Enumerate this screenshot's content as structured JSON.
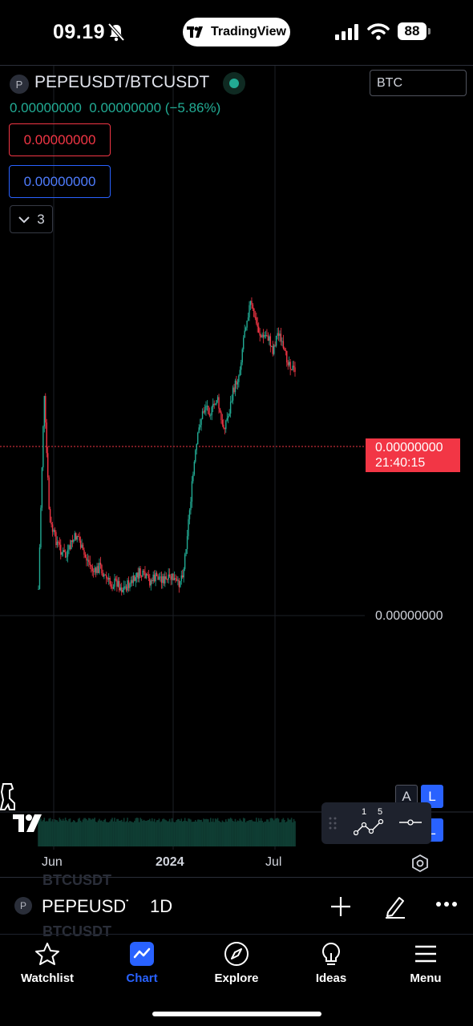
{
  "status_bar": {
    "time": "09.19",
    "app_pill": "TradingView",
    "battery": "88"
  },
  "header": {
    "symbol_icon_letter": "P",
    "symbol": "PEPEUSDT/BTCUSDT",
    "currency": "BTC",
    "quote_line": "0.00000000  0.00000000 (−5.86%)",
    "sell_price": "0.00000000",
    "buy_price": "0.00000000",
    "indicators_count": "3"
  },
  "chart": {
    "last_price": "0.00000000",
    "countdown": "21:40:15",
    "axis_price": "0.00000000",
    "x_labels": [
      "Jun",
      "2024",
      "Jul"
    ],
    "scale_buttons": {
      "auto": "A",
      "log": "L"
    },
    "toolbar_numbers": [
      "1",
      "5"
    ],
    "colors": {
      "up": "#22ab94",
      "down": "#f23645",
      "accent": "#2962ff"
    }
  },
  "chart_data": {
    "type": "candlestick",
    "xlabel": "",
    "ylabel": "",
    "x_ticks": [
      "Jun",
      "2024",
      "Jul"
    ],
    "trend_normalized_0_to_1_down_is_higher": [
      0.55,
      0.05,
      0.38,
      0.42,
      0.45,
      0.47,
      0.43,
      0.41,
      0.46,
      0.48,
      0.51,
      0.49,
      0.52,
      0.54,
      0.53,
      0.55,
      0.54,
      0.53,
      0.51,
      0.52,
      0.53,
      0.52,
      0.52,
      0.53,
      0.52,
      0.54,
      0.5,
      0.36,
      0.22,
      0.12,
      0.08,
      0.1,
      0.06,
      0.14,
      0.11,
      0.04,
      0.0,
      -0.12,
      -0.18,
      -0.13,
      -0.09,
      -0.1,
      -0.06,
      -0.11,
      -0.05,
      -0.03,
      0.0
    ]
  },
  "symbol_bar": {
    "icon_letter": "P",
    "symbol": "PEPEUSDT/BTCUSDT",
    "interval": "1D",
    "ghost_text": "BTCUSDT"
  },
  "nav": [
    {
      "label": "Watchlist",
      "icon": "star-icon"
    },
    {
      "label": "Chart",
      "icon": "chart-icon"
    },
    {
      "label": "Explore",
      "icon": "compass-icon"
    },
    {
      "label": "Ideas",
      "icon": "lightbulb-icon"
    },
    {
      "label": "Menu",
      "icon": "menu-icon"
    }
  ]
}
